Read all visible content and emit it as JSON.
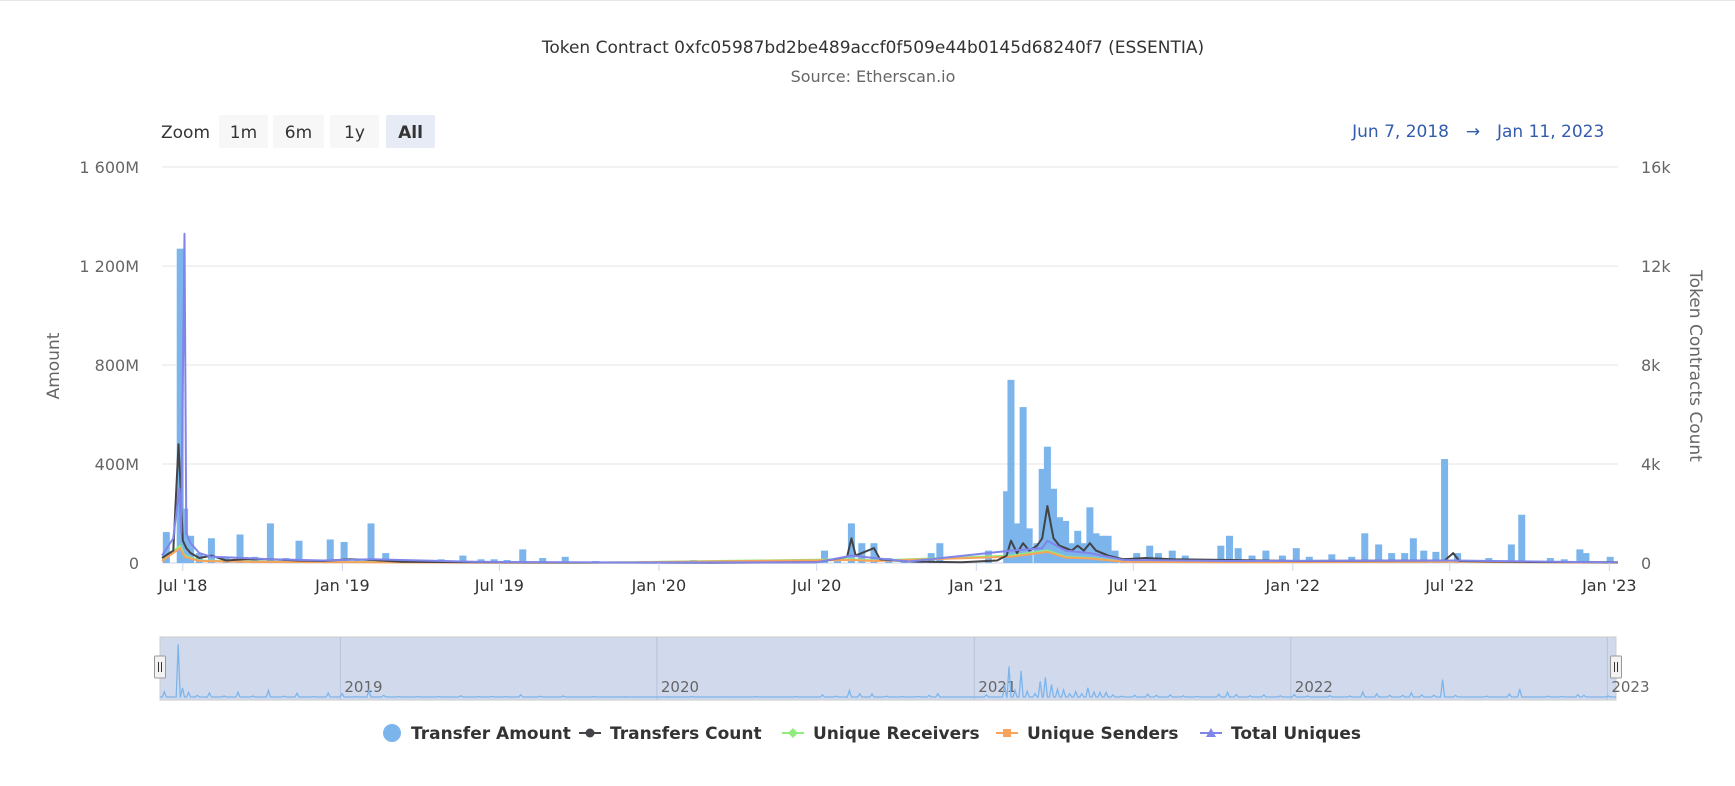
{
  "chart_data": {
    "type": "bar",
    "title": "Token Contract 0xfc05987bd2be489accf0f509e44b0145d68240f7 (ESSENTIA)",
    "subtitle": "Source: Etherscan.io",
    "zoom": {
      "label": "Zoom",
      "buttons": [
        "1m",
        "6m",
        "1y",
        "All"
      ],
      "selected": "All"
    },
    "range": {
      "from": "Jun 7, 2018",
      "arrow": "→",
      "to": "Jan 11, 2023"
    },
    "x_axis": {
      "min": "2018-06-07",
      "max": "2023-01-11",
      "tick_labels": [
        "Jul '18",
        "Jan '19",
        "Jul '19",
        "Jan '20",
        "Jul '20",
        "Jan '21",
        "Jul '21",
        "Jan '22",
        "Jul '22",
        "Jan '23"
      ],
      "tick_dates": [
        "2018-07-01",
        "2019-01-01",
        "2019-07-01",
        "2020-01-01",
        "2020-07-01",
        "2021-01-01",
        "2021-07-01",
        "2022-01-01",
        "2022-07-01",
        "2023-01-01"
      ]
    },
    "y_left": {
      "title": "Amount",
      "min": 0,
      "max": 1600000000,
      "tick_values": [
        0,
        400000000,
        800000000,
        1200000000,
        1600000000
      ],
      "tick_labels": [
        "0",
        "400M",
        "800M",
        "1 200M",
        "1 600M"
      ]
    },
    "y_right": {
      "title": "Token Contracts Count",
      "min": 0,
      "max": 16000,
      "tick_values": [
        0,
        4000,
        8000,
        12000,
        16000
      ],
      "tick_labels": [
        "0",
        "4k",
        "8k",
        "12k",
        "16k"
      ]
    },
    "navigator": {
      "year_labels": [
        "2019",
        "2020",
        "2021",
        "2022",
        "2023"
      ],
      "year_dates": [
        "2019-01-01",
        "2020-01-01",
        "2021-01-01",
        "2022-01-01",
        "2023-01-01"
      ]
    },
    "colors": {
      "transfer_amount": "#7cb5ec",
      "transfers_count": "#434348",
      "unique_receivers": "#90ed7d",
      "unique_senders": "#f7a35c",
      "total_uniques": "#8085e9",
      "range_text": "#335cad",
      "grid": "#e6e6e6",
      "navigator_mask": "#ccd6eb"
    },
    "legend": [
      {
        "name": "Transfer Amount",
        "marker": "circle",
        "color": "#7cb5ec"
      },
      {
        "name": "Transfers Count",
        "marker": "line-circle",
        "color": "#434348"
      },
      {
        "name": "Unique Receivers",
        "marker": "line-diamond",
        "color": "#90ed7d"
      },
      {
        "name": "Unique Senders",
        "marker": "line-square",
        "color": "#f7a35c"
      },
      {
        "name": "Total Uniques",
        "marker": "line-triangle",
        "color": "#8085e9"
      }
    ],
    "legend_position": "bottom",
    "grid": true,
    "series": [
      {
        "name": "Transfer Amount",
        "axis": "left",
        "kind": "bar",
        "points": [
          [
            "2018-06-12",
            125000000
          ],
          [
            "2018-06-28",
            1270000000
          ],
          [
            "2018-07-03",
            220000000
          ],
          [
            "2018-07-10",
            110000000
          ],
          [
            "2018-07-20",
            40000000
          ],
          [
            "2018-08-03",
            100000000
          ],
          [
            "2018-08-20",
            25000000
          ],
          [
            "2018-09-05",
            115000000
          ],
          [
            "2018-09-22",
            25000000
          ],
          [
            "2018-10-10",
            160000000
          ],
          [
            "2018-10-28",
            20000000
          ],
          [
            "2018-11-12",
            90000000
          ],
          [
            "2018-12-01",
            10000000
          ],
          [
            "2018-12-18",
            95000000
          ],
          [
            "2019-01-03",
            85000000
          ],
          [
            "2019-01-18",
            10000000
          ],
          [
            "2019-02-03",
            160000000
          ],
          [
            "2019-02-20",
            40000000
          ],
          [
            "2019-03-10",
            12000000
          ],
          [
            "2019-04-01",
            10000000
          ],
          [
            "2019-04-25",
            15000000
          ],
          [
            "2019-05-20",
            30000000
          ],
          [
            "2019-06-10",
            15000000
          ],
          [
            "2019-06-25",
            15000000
          ],
          [
            "2019-07-10",
            12000000
          ],
          [
            "2019-07-28",
            55000000
          ],
          [
            "2019-08-20",
            20000000
          ],
          [
            "2019-09-15",
            25000000
          ],
          [
            "2019-10-20",
            8000000
          ],
          [
            "2019-11-25",
            5000000
          ],
          [
            "2020-01-15",
            5000000
          ],
          [
            "2020-02-10",
            12000000
          ],
          [
            "2020-03-20",
            5000000
          ],
          [
            "2020-04-25",
            8000000
          ],
          [
            "2020-06-10",
            10000000
          ],
          [
            "2020-07-10",
            50000000
          ],
          [
            "2020-07-25",
            20000000
          ],
          [
            "2020-08-10",
            160000000
          ],
          [
            "2020-08-22",
            80000000
          ],
          [
            "2020-09-05",
            80000000
          ],
          [
            "2020-09-22",
            20000000
          ],
          [
            "2020-10-10",
            10000000
          ],
          [
            "2020-10-28",
            15000000
          ],
          [
            "2020-11-10",
            40000000
          ],
          [
            "2020-11-20",
            80000000
          ],
          [
            "2021-01-15",
            50000000
          ],
          [
            "2021-02-05",
            290000000
          ],
          [
            "2021-02-10",
            740000000
          ],
          [
            "2021-02-17",
            160000000
          ],
          [
            "2021-02-24",
            630000000
          ],
          [
            "2021-03-03",
            140000000
          ],
          [
            "2021-03-12",
            80000000
          ],
          [
            "2021-03-18",
            380000000
          ],
          [
            "2021-03-24",
            470000000
          ],
          [
            "2021-03-31",
            300000000
          ],
          [
            "2021-04-07",
            185000000
          ],
          [
            "2021-04-14",
            170000000
          ],
          [
            "2021-04-21",
            80000000
          ],
          [
            "2021-04-28",
            130000000
          ],
          [
            "2021-05-05",
            80000000
          ],
          [
            "2021-05-12",
            225000000
          ],
          [
            "2021-05-19",
            120000000
          ],
          [
            "2021-05-26",
            110000000
          ],
          [
            "2021-06-02",
            110000000
          ],
          [
            "2021-06-10",
            50000000
          ],
          [
            "2021-06-20",
            20000000
          ],
          [
            "2021-07-05",
            40000000
          ],
          [
            "2021-07-20",
            70000000
          ],
          [
            "2021-07-30",
            40000000
          ],
          [
            "2021-08-15",
            50000000
          ],
          [
            "2021-08-30",
            30000000
          ],
          [
            "2021-09-15",
            15000000
          ],
          [
            "2021-10-10",
            70000000
          ],
          [
            "2021-10-20",
            110000000
          ],
          [
            "2021-10-30",
            60000000
          ],
          [
            "2021-11-15",
            30000000
          ],
          [
            "2021-12-01",
            50000000
          ],
          [
            "2021-12-20",
            30000000
          ],
          [
            "2022-01-05",
            60000000
          ],
          [
            "2022-01-20",
            25000000
          ],
          [
            "2022-02-15",
            35000000
          ],
          [
            "2022-03-10",
            25000000
          ],
          [
            "2022-03-25",
            120000000
          ],
          [
            "2022-04-10",
            75000000
          ],
          [
            "2022-04-25",
            40000000
          ],
          [
            "2022-05-10",
            40000000
          ],
          [
            "2022-05-20",
            100000000
          ],
          [
            "2022-06-01",
            50000000
          ],
          [
            "2022-06-15",
            45000000
          ],
          [
            "2022-06-25",
            420000000
          ],
          [
            "2022-07-10",
            40000000
          ],
          [
            "2022-08-15",
            20000000
          ],
          [
            "2022-09-10",
            75000000
          ],
          [
            "2022-09-22",
            195000000
          ],
          [
            "2022-10-25",
            20000000
          ],
          [
            "2022-11-10",
            15000000
          ],
          [
            "2022-11-28",
            55000000
          ],
          [
            "2022-12-05",
            40000000
          ],
          [
            "2023-01-02",
            25000000
          ]
        ]
      },
      {
        "name": "Transfers Count",
        "axis": "right",
        "kind": "line",
        "points": [
          [
            "2018-06-07",
            200
          ],
          [
            "2018-06-20",
            500
          ],
          [
            "2018-06-26",
            4800
          ],
          [
            "2018-06-28",
            3400
          ],
          [
            "2018-07-01",
            900
          ],
          [
            "2018-07-05",
            600
          ],
          [
            "2018-07-10",
            400
          ],
          [
            "2018-07-20",
            200
          ],
          [
            "2018-08-03",
            300
          ],
          [
            "2018-08-20",
            100
          ],
          [
            "2018-09-10",
            150
          ],
          [
            "2018-10-10",
            150
          ],
          [
            "2018-11-10",
            100
          ],
          [
            "2018-12-10",
            80
          ],
          [
            "2019-01-10",
            150
          ],
          [
            "2019-02-05",
            120
          ],
          [
            "2019-03-10",
            50
          ],
          [
            "2019-06-01",
            30
          ],
          [
            "2019-10-01",
            20
          ],
          [
            "2020-03-01",
            10
          ],
          [
            "2020-07-01",
            30
          ],
          [
            "2020-08-05",
            250
          ],
          [
            "2020-08-10",
            1000
          ],
          [
            "2020-08-15",
            300
          ],
          [
            "2020-09-05",
            600
          ],
          [
            "2020-09-12",
            150
          ],
          [
            "2020-10-15",
            60
          ],
          [
            "2020-12-15",
            30
          ],
          [
            "2021-01-25",
            100
          ],
          [
            "2021-02-05",
            300
          ],
          [
            "2021-02-10",
            900
          ],
          [
            "2021-02-17",
            400
          ],
          [
            "2021-02-24",
            800
          ],
          [
            "2021-03-03",
            500
          ],
          [
            "2021-03-12",
            700
          ],
          [
            "2021-03-18",
            1000
          ],
          [
            "2021-03-24",
            2300
          ],
          [
            "2021-03-31",
            1000
          ],
          [
            "2021-04-07",
            700
          ],
          [
            "2021-04-14",
            600
          ],
          [
            "2021-04-21",
            500
          ],
          [
            "2021-04-28",
            700
          ],
          [
            "2021-05-05",
            500
          ],
          [
            "2021-05-12",
            800
          ],
          [
            "2021-05-19",
            500
          ],
          [
            "2021-06-02",
            300
          ],
          [
            "2021-06-20",
            150
          ],
          [
            "2021-07-15",
            200
          ],
          [
            "2021-08-15",
            150
          ],
          [
            "2021-10-20",
            120
          ],
          [
            "2022-01-05",
            80
          ],
          [
            "2022-06-25",
            100
          ],
          [
            "2022-07-05",
            400
          ],
          [
            "2022-07-12",
            80
          ],
          [
            "2022-10-01",
            40
          ],
          [
            "2023-01-11",
            30
          ]
        ]
      },
      {
        "name": "Unique Receivers",
        "axis": "right",
        "kind": "line",
        "points": [
          [
            "2018-06-07",
            100
          ],
          [
            "2018-06-28",
            700
          ],
          [
            "2018-07-03",
            300
          ],
          [
            "2018-07-20",
            100
          ],
          [
            "2018-10-01",
            50
          ],
          [
            "2019-02-01",
            40
          ],
          [
            "2019-10-01",
            10
          ],
          [
            "2020-08-10",
            150
          ],
          [
            "2020-09-05",
            100
          ],
          [
            "2021-02-10",
            300
          ],
          [
            "2021-03-24",
            500
          ],
          [
            "2021-04-14",
            250
          ],
          [
            "2021-05-12",
            200
          ],
          [
            "2021-06-20",
            60
          ],
          [
            "2021-10-20",
            40
          ],
          [
            "2022-07-05",
            60
          ],
          [
            "2023-01-11",
            10
          ]
        ]
      },
      {
        "name": "Unique Senders",
        "axis": "right",
        "kind": "line",
        "points": [
          [
            "2018-06-07",
            80
          ],
          [
            "2018-06-28",
            600
          ],
          [
            "2018-07-03",
            250
          ],
          [
            "2018-07-20",
            80
          ],
          [
            "2018-10-01",
            40
          ],
          [
            "2019-02-01",
            30
          ],
          [
            "2019-10-01",
            10
          ],
          [
            "2020-08-10",
            120
          ],
          [
            "2020-09-05",
            80
          ],
          [
            "2021-02-10",
            250
          ],
          [
            "2021-03-24",
            450
          ],
          [
            "2021-04-14",
            220
          ],
          [
            "2021-05-12",
            180
          ],
          [
            "2021-06-20",
            50
          ],
          [
            "2021-10-20",
            30
          ],
          [
            "2022-07-05",
            50
          ],
          [
            "2023-01-11",
            10
          ]
        ]
      },
      {
        "name": "Total Uniques",
        "axis": "right",
        "kind": "line",
        "points": [
          [
            "2018-06-07",
            300
          ],
          [
            "2018-06-20",
            1000
          ],
          [
            "2018-06-27",
            3000
          ],
          [
            "2018-06-29",
            1200
          ],
          [
            "2018-07-03",
            13300
          ],
          [
            "2018-07-05",
            1200
          ],
          [
            "2018-07-10",
            800
          ],
          [
            "2018-07-20",
            400
          ],
          [
            "2018-08-03",
            250
          ],
          [
            "2018-09-10",
            200
          ],
          [
            "2018-10-10",
            150
          ],
          [
            "2018-12-10",
            100
          ],
          [
            "2019-02-05",
            150
          ],
          [
            "2019-06-01",
            50
          ],
          [
            "2019-12-01",
            20
          ],
          [
            "2020-07-01",
            30
          ],
          [
            "2020-08-10",
            300
          ],
          [
            "2020-09-05",
            200
          ],
          [
            "2020-10-15",
            60
          ],
          [
            "2021-02-10",
            500
          ],
          [
            "2021-03-18",
            600
          ],
          [
            "2021-03-24",
            900
          ],
          [
            "2021-04-14",
            500
          ],
          [
            "2021-05-12",
            400
          ],
          [
            "2021-06-20",
            120
          ],
          [
            "2021-10-20",
            80
          ],
          [
            "2022-07-05",
            100
          ],
          [
            "2023-01-11",
            20
          ]
        ]
      }
    ]
  }
}
